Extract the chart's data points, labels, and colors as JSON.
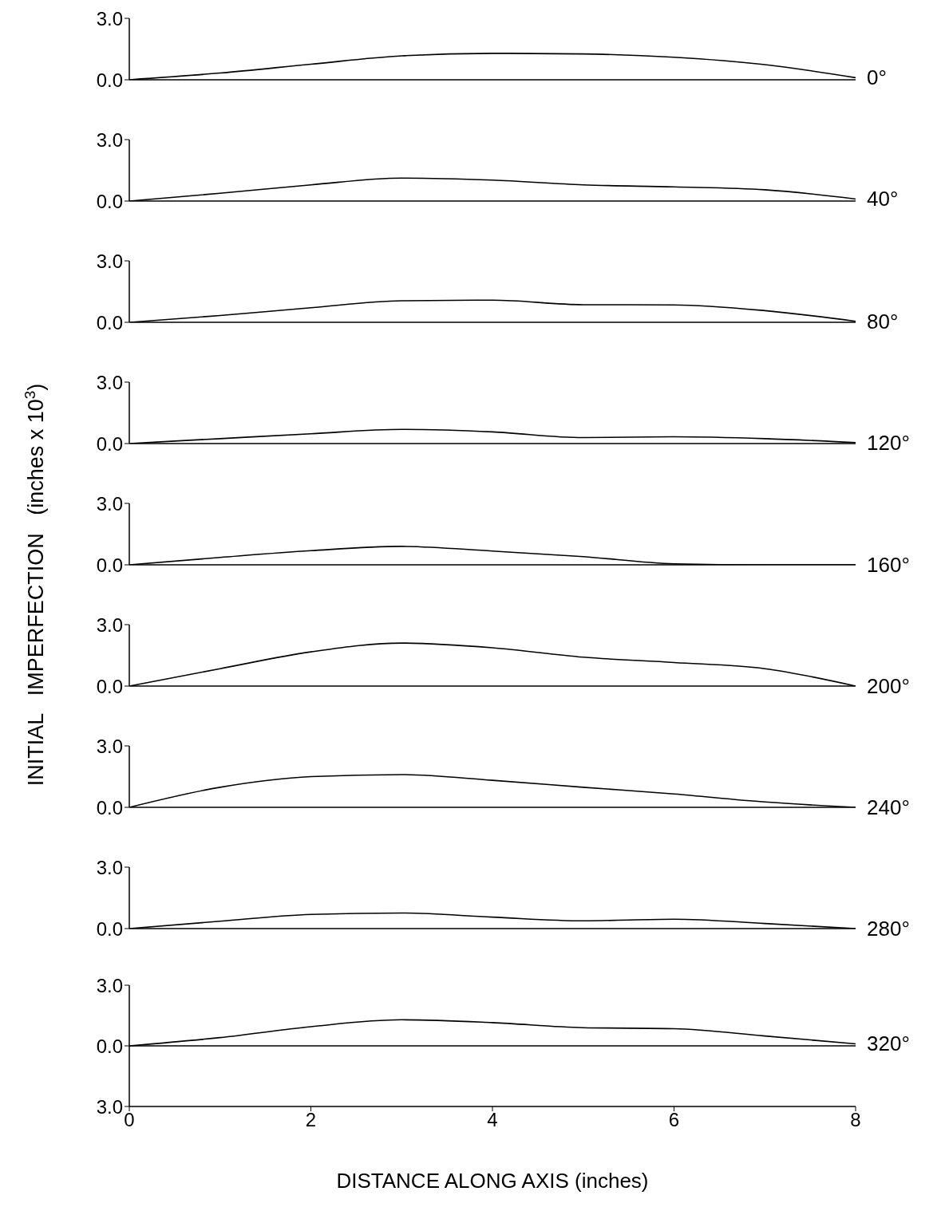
{
  "chart_data": [
    {
      "type": "line",
      "x": [
        0,
        1,
        2,
        3,
        4,
        5,
        6,
        7,
        8
      ],
      "xlim": [
        0,
        8
      ],
      "ylim": [
        0,
        3
      ],
      "yticks": [
        {
          "value": 0,
          "label": "0.0"
        },
        {
          "value": 3,
          "label": "3.0"
        }
      ],
      "tick_labels": "y",
      "marker": "none",
      "line_style": "solid",
      "series": [
        {
          "name": "0°",
          "color": "#000000",
          "values": [
            0,
            0.33,
            0.76,
            1.17,
            1.29,
            1.26,
            1.1,
            0.74,
            0.1
          ]
        }
      ]
    },
    {
      "type": "line",
      "x": [
        0,
        1,
        2,
        3,
        4,
        5,
        6,
        7,
        8
      ],
      "xlim": [
        0,
        8
      ],
      "ylim": [
        0,
        3
      ],
      "yticks": [
        {
          "value": 0,
          "label": "0.0"
        },
        {
          "value": 3,
          "label": "3.0"
        }
      ],
      "tick_labels": "y",
      "marker": "none",
      "line_style": "solid",
      "series": [
        {
          "name": "40°",
          "color": "#000000",
          "values": [
            0,
            0.38,
            0.79,
            1.12,
            1.02,
            0.79,
            0.69,
            0.55,
            0.1
          ]
        }
      ]
    },
    {
      "type": "line",
      "x": [
        0,
        1,
        2,
        3,
        4,
        5,
        6,
        7,
        8
      ],
      "xlim": [
        0,
        8
      ],
      "ylim": [
        0,
        3
      ],
      "yticks": [
        {
          "value": 0,
          "label": "0.0"
        },
        {
          "value": 3,
          "label": "3.0"
        }
      ],
      "tick_labels": "y",
      "marker": "none",
      "line_style": "solid",
      "series": [
        {
          "name": "80°",
          "color": "#000000",
          "values": [
            0,
            0.33,
            0.71,
            1.05,
            1.08,
            0.86,
            0.85,
            0.57,
            0.05
          ]
        }
      ]
    },
    {
      "type": "line",
      "x": [
        0,
        1,
        2,
        3,
        4,
        5,
        6,
        7,
        8
      ],
      "xlim": [
        0,
        8
      ],
      "ylim": [
        0,
        3
      ],
      "yticks": [
        {
          "value": 0,
          "label": "0.0"
        },
        {
          "value": 3,
          "label": "3.0"
        }
      ],
      "tick_labels": "y",
      "marker": "none",
      "line_style": "solid",
      "series": [
        {
          "name": "120°",
          "color": "#000000",
          "values": [
            0,
            0.24,
            0.48,
            0.69,
            0.57,
            0.29,
            0.33,
            0.24,
            0.05
          ]
        }
      ]
    },
    {
      "type": "line",
      "x": [
        0,
        1,
        2,
        3,
        4,
        5,
        6,
        7,
        8
      ],
      "xlim": [
        0,
        8
      ],
      "ylim": [
        0,
        3
      ],
      "yticks": [
        {
          "value": 0,
          "label": "0.0"
        },
        {
          "value": 3,
          "label": "3.0"
        }
      ],
      "tick_labels": "y",
      "marker": "none",
      "line_style": "solid",
      "ylabel": "INITIAL   IMPERFECTION   (inches x 10$^{3}$)",
      "series": [
        {
          "name": "160°",
          "color": "#000000",
          "values": [
            0,
            0.36,
            0.69,
            0.9,
            0.67,
            0.4,
            0.05,
            0,
            0
          ]
        }
      ]
    },
    {
      "type": "line",
      "x": [
        0,
        1,
        2,
        3,
        4,
        5,
        6,
        7,
        8
      ],
      "xlim": [
        0,
        8
      ],
      "ylim": [
        0,
        3
      ],
      "yticks": [
        {
          "value": 0,
          "label": "0.0"
        },
        {
          "value": 3,
          "label": "3.0"
        }
      ],
      "tick_labels": "y",
      "marker": "none",
      "line_style": "solid",
      "series": [
        {
          "name": "200°",
          "color": "#000000",
          "values": [
            0,
            0.85,
            1.67,
            2.1,
            1.87,
            1.41,
            1.15,
            0.85,
            0
          ]
        }
      ]
    },
    {
      "type": "line",
      "x": [
        0,
        1,
        2,
        3,
        4,
        5,
        6,
        7,
        8
      ],
      "xlim": [
        0,
        8
      ],
      "ylim": [
        0,
        3
      ],
      "yticks": [
        {
          "value": 0,
          "label": "0.0"
        },
        {
          "value": 3,
          "label": "3.0"
        }
      ],
      "tick_labels": "y",
      "marker": "none",
      "line_style": "solid",
      "series": [
        {
          "name": "240°",
          "color": "#000000",
          "values": [
            0,
            0.98,
            1.5,
            1.6,
            1.32,
            0.98,
            0.65,
            0.26,
            0
          ]
        }
      ]
    },
    {
      "type": "line",
      "x": [
        0,
        1,
        2,
        3,
        4,
        5,
        6,
        7,
        8
      ],
      "xlim": [
        0,
        8
      ],
      "ylim": [
        0,
        3
      ],
      "yticks": [
        {
          "value": 0,
          "label": "0.0"
        },
        {
          "value": 3,
          "label": "3.0"
        }
      ],
      "tick_labels": "y",
      "marker": "none",
      "line_style": "solid",
      "series": [
        {
          "name": "280°",
          "color": "#000000",
          "values": [
            0,
            0.36,
            0.69,
            0.76,
            0.56,
            0.38,
            0.46,
            0.25,
            0
          ]
        }
      ]
    },
    {
      "type": "line",
      "x": [
        0,
        1,
        2,
        3,
        4,
        5,
        6,
        7,
        8
      ],
      "xlim": [
        0,
        8
      ],
      "xticks": [
        0,
        2,
        4,
        6,
        8
      ],
      "ylim": [
        -3,
        3
      ],
      "yticks": [
        {
          "value": -3,
          "label": "3.0"
        },
        {
          "value": 0,
          "label": "0.0"
        },
        {
          "value": 3,
          "label": "3.0"
        }
      ],
      "xlabel": "DISTANCE   ALONG   AXIS   (inches)",
      "marker": "none",
      "line_style": "solid",
      "ref_lines": [
        {
          "axis": "y",
          "value": 0
        }
      ],
      "series": [
        {
          "name": "320°",
          "color": "#000000",
          "values": [
            0,
            0.41,
            0.95,
            1.29,
            1.15,
            0.9,
            0.85,
            0.49,
            0.1
          ]
        }
      ]
    }
  ]
}
